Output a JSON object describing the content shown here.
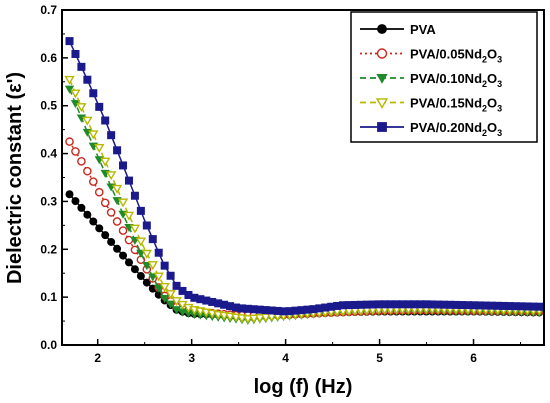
{
  "chart_data": {
    "type": "line",
    "xlabel": "log (f) (Hz)",
    "ylabel": "Dielectric constant (ε')",
    "xlim": [
      1.62,
      6.75
    ],
    "ylim": [
      0.0,
      0.7
    ],
    "xticks": [
      "2",
      "3",
      "4",
      "5",
      "6"
    ],
    "yticks": [
      "0.0",
      "0.1",
      "0.2",
      "0.3",
      "0.4",
      "0.5",
      "0.6",
      "0.7"
    ],
    "grid": false,
    "legend_position": "top-right",
    "series": [
      {
        "name": "PVA",
        "color": "#000000",
        "marker": "circle-filled",
        "line": "solid",
        "points": [
          [
            1.7,
            0.315
          ],
          [
            1.9,
            0.27
          ],
          [
            2.1,
            0.225
          ],
          [
            2.3,
            0.18
          ],
          [
            2.5,
            0.135
          ],
          [
            2.7,
            0.095
          ],
          [
            2.85,
            0.072
          ],
          [
            3.0,
            0.065
          ],
          [
            3.5,
            0.062
          ],
          [
            4.0,
            0.063
          ],
          [
            4.5,
            0.068
          ],
          [
            5.0,
            0.07
          ],
          [
            5.5,
            0.07
          ],
          [
            6.0,
            0.07
          ],
          [
            6.7,
            0.068
          ]
        ]
      },
      {
        "name": "PVA/0.05Nd2O3",
        "color": "#c8281e",
        "marker": "circle-open",
        "line": "dotted",
        "points": [
          [
            1.7,
            0.425
          ],
          [
            1.9,
            0.36
          ],
          [
            2.1,
            0.29
          ],
          [
            2.3,
            0.23
          ],
          [
            2.5,
            0.165
          ],
          [
            2.7,
            0.105
          ],
          [
            2.85,
            0.078
          ],
          [
            3.0,
            0.07
          ],
          [
            3.5,
            0.062
          ],
          [
            4.0,
            0.063
          ],
          [
            4.5,
            0.068
          ],
          [
            5.0,
            0.072
          ],
          [
            5.5,
            0.073
          ],
          [
            6.0,
            0.072
          ],
          [
            6.7,
            0.07
          ]
        ]
      },
      {
        "name": "PVA/0.10Nd2O3",
        "color": "#1f8a2a",
        "marker": "triangle-down-filled",
        "line": "dashed",
        "points": [
          [
            1.7,
            0.535
          ],
          [
            1.9,
            0.44
          ],
          [
            2.1,
            0.35
          ],
          [
            2.3,
            0.26
          ],
          [
            2.5,
            0.175
          ],
          [
            2.7,
            0.1
          ],
          [
            2.85,
            0.072
          ],
          [
            3.0,
            0.065
          ],
          [
            3.3,
            0.058
          ],
          [
            3.6,
            0.052
          ],
          [
            4.0,
            0.06
          ],
          [
            4.5,
            0.068
          ],
          [
            5.0,
            0.072
          ],
          [
            5.5,
            0.072
          ],
          [
            6.0,
            0.071
          ],
          [
            6.7,
            0.068
          ]
        ]
      },
      {
        "name": "PVA/0.15Nd2O3",
        "color": "#b8b800",
        "marker": "triangle-down-open",
        "line": "dashed",
        "points": [
          [
            1.7,
            0.555
          ],
          [
            1.9,
            0.465
          ],
          [
            2.1,
            0.375
          ],
          [
            2.3,
            0.285
          ],
          [
            2.5,
            0.2
          ],
          [
            2.7,
            0.125
          ],
          [
            2.85,
            0.09
          ],
          [
            3.0,
            0.075
          ],
          [
            3.3,
            0.063
          ],
          [
            3.6,
            0.055
          ],
          [
            4.0,
            0.062
          ],
          [
            4.5,
            0.07
          ],
          [
            5.0,
            0.074
          ],
          [
            5.5,
            0.075
          ],
          [
            6.0,
            0.074
          ],
          [
            6.7,
            0.072
          ]
        ]
      },
      {
        "name": "PVA/0.20Nd2O3",
        "color": "#1a1a8c",
        "marker": "square-filled",
        "line": "solid",
        "points": [
          [
            1.7,
            0.635
          ],
          [
            1.9,
            0.55
          ],
          [
            2.1,
            0.46
          ],
          [
            2.3,
            0.36
          ],
          [
            2.5,
            0.26
          ],
          [
            2.7,
            0.17
          ],
          [
            2.85,
            0.12
          ],
          [
            3.0,
            0.1
          ],
          [
            3.5,
            0.077
          ],
          [
            4.0,
            0.07
          ],
          [
            4.3,
            0.075
          ],
          [
            4.6,
            0.083
          ],
          [
            5.0,
            0.085
          ],
          [
            5.5,
            0.085
          ],
          [
            6.0,
            0.083
          ],
          [
            6.7,
            0.08
          ]
        ]
      }
    ]
  }
}
